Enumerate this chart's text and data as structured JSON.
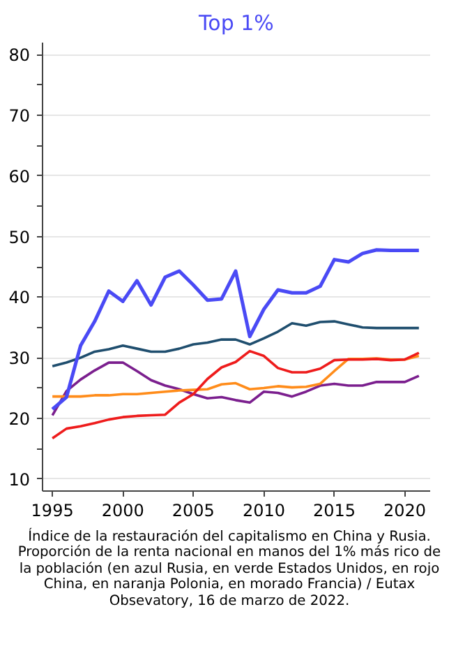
{
  "chart_data": {
    "type": "line",
    "title": "Top 1%",
    "x": [
      1995,
      1996,
      1997,
      1998,
      1999,
      2000,
      2001,
      2002,
      2003,
      2004,
      2005,
      2006,
      2007,
      2008,
      2009,
      2010,
      2011,
      2012,
      2013,
      2014,
      2015,
      2016,
      2017,
      2018,
      2019,
      2020,
      2021
    ],
    "series": [
      {
        "color": "#1f4e6e",
        "values": [
          28.6,
          29.2,
          30,
          31,
          31.4,
          32,
          31.5,
          31,
          31,
          31.5,
          32.2,
          32.5,
          33,
          33,
          32.2,
          33.2,
          34.3,
          35.7,
          35.3,
          35.9,
          36,
          35.5,
          35,
          34.9,
          34.9,
          34.9,
          34.9
        ]
      },
      {
        "color": "#7b1f8e",
        "values": [
          20.5,
          24.5,
          26.4,
          27.9,
          29.2,
          29.2,
          27.8,
          26.3,
          25.4,
          24.8,
          24,
          23.3,
          23.5,
          23,
          22.6,
          24.4,
          24.2,
          23.6,
          24.4,
          25.4,
          25.7,
          25.4,
          25.4,
          26,
          26,
          26,
          27
        ]
      },
      {
        "color": "#ff8c1a",
        "values": [
          23.6,
          23.6,
          23.6,
          23.8,
          23.8,
          24,
          24,
          24.2,
          24.4,
          24.6,
          24.7,
          24.8,
          25.6,
          25.8,
          24.8,
          25,
          25.3,
          25.1,
          25.2,
          25.7,
          27.8,
          29.8,
          29.8,
          29.9,
          29.7,
          29.7,
          30.3
        ]
      },
      {
        "color": "#ee1c1c",
        "values": [
          16.7,
          18.3,
          18.7,
          19.2,
          19.8,
          20.2,
          20.4,
          20.5,
          20.6,
          22.6,
          24,
          26.5,
          28.4,
          29.3,
          31.1,
          30.3,
          28.3,
          27.6,
          27.6,
          28.2,
          29.6,
          29.7,
          29.7,
          29.8,
          29.6,
          29.7,
          30.8
        ]
      },
      {
        "color": "#4a4af5",
        "values": [
          21.5,
          23.5,
          32,
          36,
          41,
          39.3,
          42.7,
          38.7,
          43.3,
          44.3,
          42,
          39.5,
          39.7,
          44.3,
          33.5,
          38,
          41.2,
          40.7,
          40.7,
          41.8,
          46.2,
          45.8,
          47.2,
          47.8,
          47.7,
          47.7,
          47.7
        ]
      }
    ],
    "xlim": [
      1994.3,
      2021.8
    ],
    "xticks": [
      1995,
      2000,
      2005,
      2010,
      2015,
      2020
    ],
    "ylim": [
      8,
      82
    ],
    "yticks": [
      10,
      {
        "value": 15,
        "label": null
      },
      20,
      {
        "value": 25,
        "label": null
      },
      30,
      {
        "value": 35,
        "label": null
      },
      40,
      {
        "value": 45,
        "label": null
      },
      50,
      {
        "value": 55,
        "label": null
      },
      60,
      {
        "value": 65,
        "label": null
      },
      70,
      {
        "value": 75,
        "label": null
      },
      80
    ],
    "grid": "y",
    "marker": "none",
    "line_style": "solid",
    "annotations": [
      "Índice de la restauración del capitalismo en China y Rusia. Proporción de la renta nacional en manos del 1% más rico de la población (en azul Rusia, en verde Estados Unidos, en rojo China, en naranja Polonia, en morado Francia) / Eutax Obsevatory, 16 de marzo de 2022."
    ]
  }
}
